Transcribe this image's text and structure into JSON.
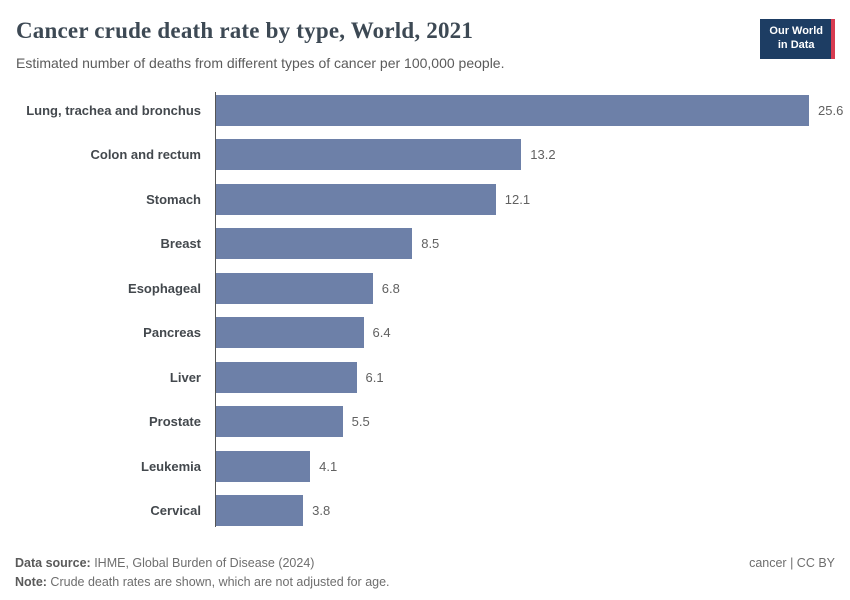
{
  "header": {
    "title": "Cancer crude death rate by type, World, 2021",
    "subtitle": "Estimated number of deaths from different types of cancer per 100,000 people.",
    "logo": {
      "line1": "Our World",
      "line2": "in Data"
    }
  },
  "chart_data": {
    "type": "bar",
    "orientation": "horizontal",
    "title": "Cancer crude death rate by type, World, 2021",
    "subtitle": "Estimated number of deaths from different types of cancer per 100,000 people.",
    "categories": [
      "Lung, trachea and bronchus",
      "Colon and rectum",
      "Stomach",
      "Breast",
      "Esophageal",
      "Pancreas",
      "Liver",
      "Prostate",
      "Leukemia",
      "Cervical"
    ],
    "values": [
      25.6,
      13.2,
      12.1,
      8.5,
      6.8,
      6.4,
      6.1,
      5.5,
      4.1,
      3.8
    ],
    "xlabel": "",
    "ylabel": "",
    "xlim": [
      0,
      25.6
    ],
    "unit": "deaths per 100,000 people",
    "bar_color": "#6d80a8",
    "grid": false,
    "value_labels": true,
    "legend": "none"
  },
  "footer": {
    "source_label": "Data source:",
    "source_text": " IHME, Global Burden of Disease (2024)",
    "note_label": "Note:",
    "note_text": " Crude death rates are shown, which are not adjusted for age.",
    "rights": "cancer | CC BY"
  },
  "colors": {
    "bar": "#6d80a8",
    "logo_background": "#1d3d63",
    "logo_accent": "#d73c50",
    "axis": "#555555",
    "title_text": "#3d4954"
  }
}
